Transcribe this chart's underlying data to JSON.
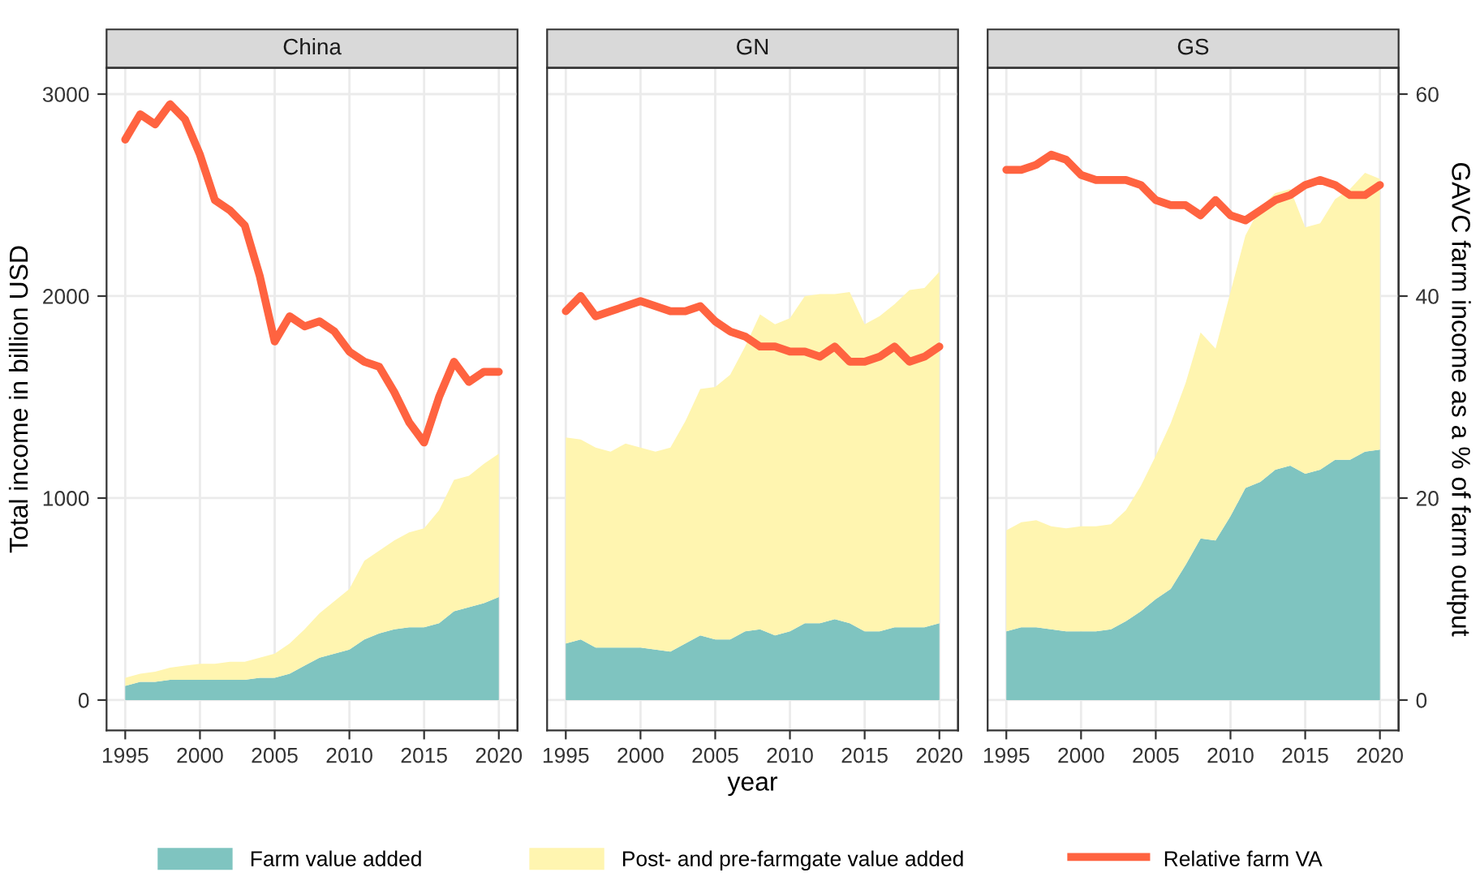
{
  "chart_data": [
    {
      "type": "area",
      "title": "China",
      "ylabel": "Total income in billion USD",
      "stacked": true,
      "x": [
        1995,
        1996,
        1997,
        1998,
        1999,
        2000,
        2001,
        2002,
        2003,
        2004,
        2005,
        2006,
        2007,
        2008,
        2009,
        2010,
        2011,
        2012,
        2013,
        2014,
        2015,
        2016,
        2017,
        2018,
        2019,
        2020
      ],
      "xlim": [
        1993.75,
        2021.25
      ],
      "xticks": [
        1995,
        2000,
        2005,
        2010,
        2015,
        2020
      ],
      "ylim": [
        -150,
        3130
      ],
      "yticks": [
        0,
        1000,
        2000,
        3000
      ],
      "y2lim": [
        -3,
        62.6
      ],
      "grid": true,
      "tick_labels": [
        "x",
        "y"
      ],
      "series": [
        {
          "color": "#7fc4c0",
          "values": [
            70,
            90,
            90,
            100,
            100,
            100,
            100,
            100,
            100,
            110,
            110,
            130,
            170,
            210,
            230,
            250,
            300,
            330,
            350,
            360,
            360,
            380,
            440,
            460,
            480,
            510
          ]
        },
        {
          "color": "#fff5b0",
          "values": [
            40,
            40,
            50,
            60,
            70,
            80,
            80,
            90,
            90,
            100,
            120,
            150,
            180,
            220,
            260,
            300,
            390,
            410,
            440,
            470,
            490,
            560,
            650,
            650,
            690,
            710
          ]
        },
        {
          "type": "line",
          "axis": "y2",
          "color": "#ff6340",
          "values": [
            55.5,
            58,
            57,
            59,
            57.5,
            54,
            49.5,
            48.5,
            47,
            42,
            35.5,
            38,
            37,
            37.5,
            36.5,
            34.5,
            33.5,
            33,
            30.5,
            27.5,
            25.5,
            30,
            33.5,
            31.5,
            32.5,
            32.5
          ]
        }
      ]
    },
    {
      "type": "area",
      "title": "GN",
      "xlabel": "year",
      "stacked": true,
      "x": [
        1995,
        1996,
        1997,
        1998,
        1999,
        2000,
        2001,
        2002,
        2003,
        2004,
        2005,
        2006,
        2007,
        2008,
        2009,
        2010,
        2011,
        2012,
        2013,
        2014,
        2015,
        2016,
        2017,
        2018,
        2019,
        2020
      ],
      "xlim": [
        1993.75,
        2021.25
      ],
      "xticks": [
        1995,
        2000,
        2005,
        2010,
        2015,
        2020
      ],
      "ylim": [
        -150,
        3130
      ],
      "y2lim": [
        -3,
        62.6
      ],
      "grid": true,
      "tick_labels": [
        "x"
      ],
      "legend": "bottom",
      "series": [
        {
          "name": "Farm value added",
          "color": "#7fc4c0",
          "values": [
            280,
            300,
            260,
            260,
            260,
            260,
            250,
            240,
            280,
            320,
            300,
            300,
            340,
            350,
            320,
            340,
            380,
            380,
            400,
            380,
            340,
            340,
            360,
            360,
            360,
            380
          ]
        },
        {
          "name": "Post- and pre-farmgate value added",
          "color": "#fff5b0",
          "values": [
            1020,
            990,
            990,
            970,
            1010,
            990,
            980,
            1010,
            1100,
            1220,
            1250,
            1310,
            1410,
            1560,
            1540,
            1550,
            1620,
            1630,
            1610,
            1640,
            1520,
            1560,
            1600,
            1670,
            1680,
            1740
          ]
        },
        {
          "name": "Relative farm VA",
          "type": "line",
          "axis": "y2",
          "color": "#ff6340",
          "values": [
            38.5,
            40,
            38,
            38.5,
            39,
            39.5,
            39,
            38.5,
            38.5,
            39,
            37.5,
            36.5,
            36,
            35,
            35,
            34.5,
            34.5,
            34,
            35,
            33.5,
            33.5,
            34,
            35,
            33.5,
            34,
            35
          ]
        }
      ]
    },
    {
      "type": "area",
      "title": "GS",
      "y2label": "GAVC farm income as a % of farm output",
      "stacked": true,
      "x": [
        1995,
        1996,
        1997,
        1998,
        1999,
        2000,
        2001,
        2002,
        2003,
        2004,
        2005,
        2006,
        2007,
        2008,
        2009,
        2010,
        2011,
        2012,
        2013,
        2014,
        2015,
        2016,
        2017,
        2018,
        2019,
        2020
      ],
      "xlim": [
        1993.75,
        2021.25
      ],
      "xticks": [
        1995,
        2000,
        2005,
        2010,
        2015,
        2020
      ],
      "ylim": [
        -150,
        3130
      ],
      "y2lim": [
        -3,
        62.6
      ],
      "y2ticks": [
        0,
        20,
        40,
        60
      ],
      "grid": true,
      "tick_labels": [
        "x",
        "y2"
      ],
      "series": [
        {
          "color": "#7fc4c0",
          "values": [
            340,
            360,
            360,
            350,
            340,
            340,
            340,
            350,
            390,
            440,
            500,
            550,
            670,
            800,
            790,
            910,
            1050,
            1080,
            1140,
            1160,
            1120,
            1140,
            1190,
            1190,
            1230,
            1240
          ]
        },
        {
          "color": "#fff5b0",
          "values": [
            500,
            520,
            530,
            510,
            510,
            520,
            520,
            520,
            550,
            620,
            710,
            820,
            900,
            1020,
            950,
            1110,
            1250,
            1360,
            1370,
            1370,
            1220,
            1220,
            1290,
            1340,
            1380,
            1340
          ]
        },
        {
          "type": "line",
          "axis": "y2",
          "color": "#ff6340",
          "values": [
            52.5,
            52.5,
            53,
            54,
            53.5,
            52,
            51.5,
            51.5,
            51.5,
            51,
            49.5,
            49,
            49,
            48,
            49.5,
            48,
            47.5,
            48.5,
            49.5,
            50,
            51,
            51.5,
            51,
            50,
            50,
            51
          ]
        }
      ]
    }
  ]
}
